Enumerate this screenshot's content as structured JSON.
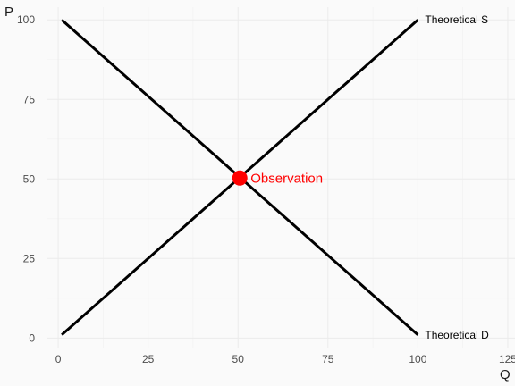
{
  "chart_data": {
    "type": "line",
    "xlabel": "Q",
    "ylabel": "P",
    "xlim": [
      -3,
      127
    ],
    "ylim": [
      -3,
      104
    ],
    "x_ticks": [
      0,
      25,
      50,
      75,
      100,
      125
    ],
    "y_ticks": [
      0,
      25,
      50,
      75,
      100
    ],
    "grid": true,
    "legend": "none",
    "series": [
      {
        "name": "Theoretical S",
        "color": "#000000",
        "points": [
          [
            1,
            1
          ],
          [
            100,
            100
          ]
        ]
      },
      {
        "name": "Theoretical D",
        "color": "#000000",
        "points": [
          [
            1,
            100
          ],
          [
            100,
            1
          ]
        ]
      }
    ],
    "points": [
      {
        "name": "Observation",
        "x": 50.5,
        "y": 50.3,
        "color": "#ff0000"
      }
    ]
  }
}
